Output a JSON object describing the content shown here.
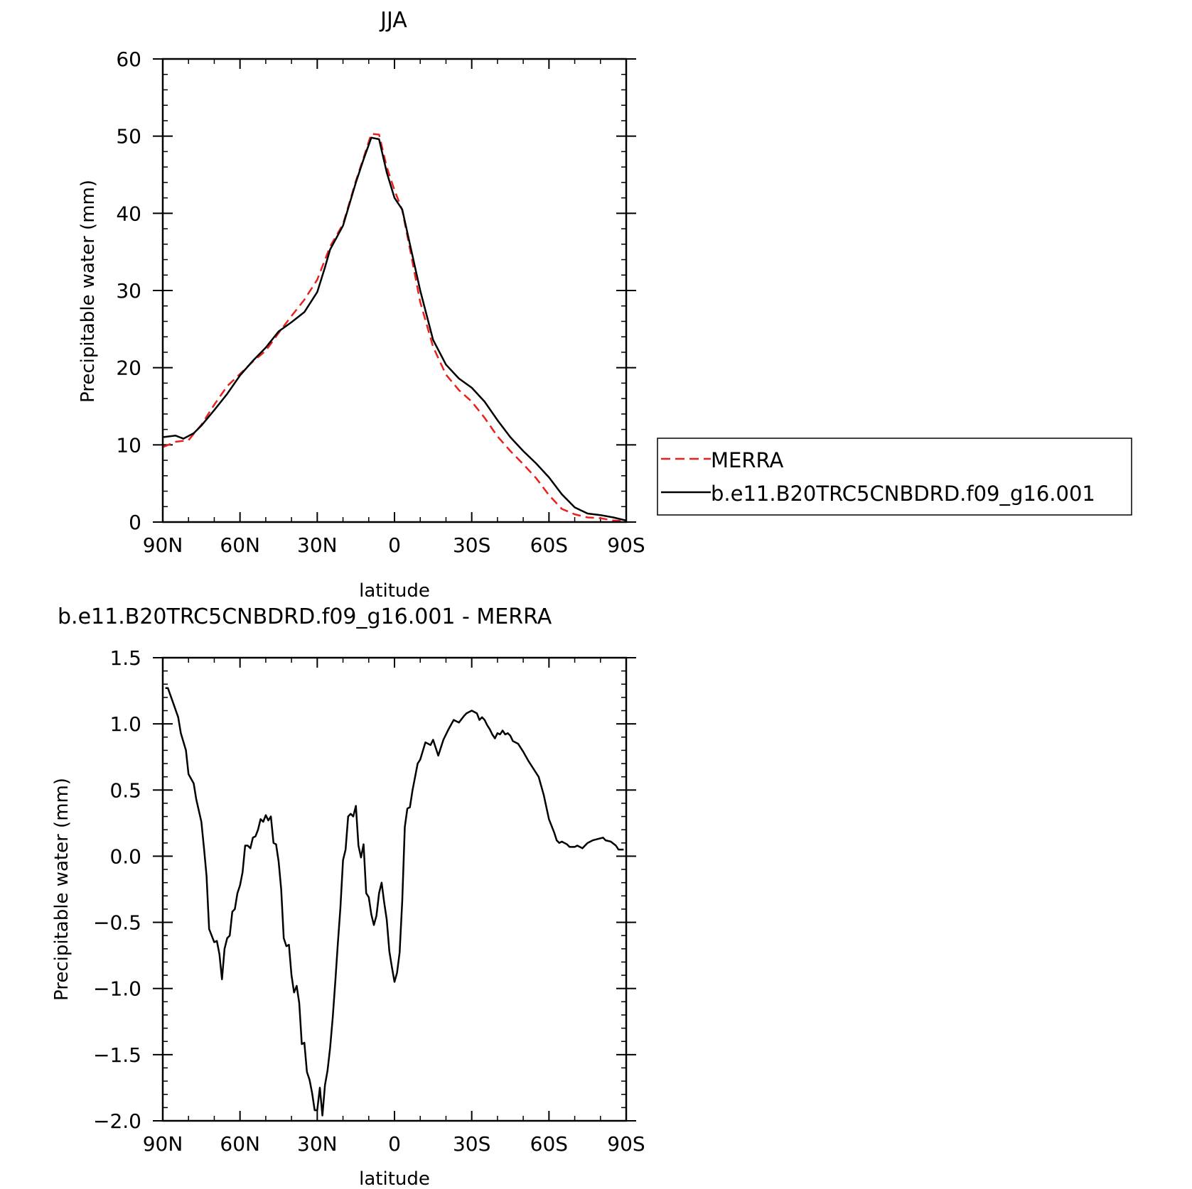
{
  "chart_data": [
    {
      "type": "line",
      "title": "JJA",
      "xlabel": "latitude",
      "ylabel": "Precipitable water (mm)",
      "xlim": [
        90,
        -90
      ],
      "ylim": [
        0,
        60
      ],
      "x_ticks": [
        90,
        60,
        30,
        0,
        -30,
        -60,
        -90
      ],
      "x_tick_labels": [
        "90N",
        "60N",
        "30N",
        "0",
        "30S",
        "60S",
        "90S"
      ],
      "y_ticks": [
        0,
        10,
        20,
        30,
        40,
        50,
        60
      ],
      "y_tick_labels": [
        "0",
        "10",
        "20",
        "30",
        "40",
        "50",
        "60"
      ],
      "legend": {
        "position": "right",
        "entries": [
          "MERRA",
          "b.e11.B20TRC5CNBDRD.f09_g16.001"
        ]
      },
      "series": [
        {
          "name": "MERRA",
          "color": "#e8211d",
          "dash": "dashed",
          "x": [
            90,
            85,
            80,
            75,
            70,
            65,
            60,
            55,
            50,
            45,
            40,
            35,
            30,
            25,
            20,
            15,
            12,
            9,
            6,
            3,
            0,
            -3,
            -6,
            -10,
            -15,
            -20,
            -25,
            -30,
            -35,
            -40,
            -45,
            -50,
            -55,
            -60,
            -65,
            -70,
            -75,
            -80,
            -85,
            -90
          ],
          "values": [
            9.7,
            10.4,
            10.6,
            12.6,
            15.2,
            17.6,
            19.2,
            20.8,
            22.2,
            24.5,
            26.7,
            28.8,
            31.4,
            35.7,
            38.6,
            44.2,
            47.2,
            50.3,
            50.2,
            46.0,
            43.0,
            40.4,
            35.4,
            28.5,
            22.7,
            19.1,
            17.1,
            15.6,
            13.5,
            11.1,
            9.2,
            7.5,
            5.7,
            3.5,
            1.7,
            1.0,
            0.6,
            0.5,
            0.2,
            0.1
          ]
        },
        {
          "name": "b.e11.B20TRC5CNBDRD.f09_g16.001",
          "color": "#000000",
          "dash": "solid",
          "x": [
            90,
            85,
            82,
            78,
            75,
            70,
            65,
            60,
            55,
            50,
            45,
            40,
            35,
            30,
            27,
            25,
            20,
            15,
            12,
            9,
            6,
            3,
            0,
            -3,
            -6,
            -10,
            -15,
            -20,
            -25,
            -30,
            -35,
            -40,
            -45,
            -50,
            -55,
            -60,
            -65,
            -70,
            -75,
            -80,
            -85,
            -90
          ],
          "values": [
            11.0,
            11.2,
            10.8,
            11.5,
            12.5,
            14.5,
            16.6,
            19.0,
            20.9,
            22.6,
            24.7,
            25.9,
            27.2,
            29.8,
            33.0,
            35.3,
            38.4,
            44.0,
            47.0,
            49.8,
            49.6,
            45.3,
            42.0,
            40.5,
            36.0,
            30.0,
            23.6,
            20.4,
            18.6,
            17.4,
            15.6,
            13.2,
            11.0,
            9.2,
            7.6,
            5.8,
            3.6,
            1.9,
            1.1,
            0.9,
            0.6,
            0.2
          ]
        }
      ]
    },
    {
      "type": "line",
      "title": "b.e11.B20TRC5CNBDRD.f09_g16.001 - MERRA",
      "xlabel": "latitude",
      "ylabel": "Precipitable water (mm)",
      "xlim": [
        90,
        -90
      ],
      "ylim": [
        -2.0,
        1.5
      ],
      "x_ticks": [
        90,
        60,
        30,
        0,
        -30,
        -60,
        -90
      ],
      "x_tick_labels": [
        "90N",
        "60N",
        "30N",
        "0",
        "30S",
        "60S",
        "90S"
      ],
      "y_ticks": [
        1.5,
        1.0,
        0.5,
        0.0,
        -0.5,
        -1.0,
        -1.5,
        -2.0
      ],
      "y_tick_labels": [
        "1.5",
        "1.0",
        "0.5",
        "0.0",
        "−0.5",
        "−1.0",
        "−1.5",
        "−2.0"
      ],
      "series": [
        {
          "color": "#000000",
          "dash": "solid",
          "x": [
            89,
            88,
            86,
            84,
            83,
            81,
            80,
            78,
            77,
            75,
            74,
            73,
            72,
            70,
            69,
            68,
            67,
            66,
            65,
            64,
            63,
            62,
            61,
            60,
            59,
            58,
            57,
            56,
            55,
            54,
            53,
            52,
            51,
            50,
            49,
            48,
            47,
            46,
            45,
            44,
            43,
            42,
            41,
            40,
            39,
            38,
            37,
            36,
            35,
            34,
            33,
            32,
            31,
            30,
            29,
            28,
            27,
            26,
            25,
            24,
            23,
            22,
            21,
            20,
            19,
            18,
            17,
            16,
            15,
            14,
            13,
            12,
            11,
            10,
            9,
            8,
            7,
            6,
            5,
            4,
            3,
            2,
            1,
            0,
            -1,
            -2,
            -3,
            -4,
            -5,
            -6,
            -7,
            -8,
            -9,
            -10,
            -12,
            -14,
            -15,
            -17,
            -19,
            -21,
            -23,
            -25,
            -27,
            -28,
            -29,
            -30,
            -31,
            -32,
            -33,
            -34,
            -35,
            -36,
            -37,
            -38,
            -39,
            -40,
            -41,
            -42,
            -43,
            -44,
            -45,
            -46,
            -48,
            -50,
            -52,
            -54,
            -56,
            -58,
            -60,
            -62,
            -63,
            -64,
            -65,
            -66,
            -67,
            -68,
            -69,
            -70,
            -71,
            -72,
            -73,
            -74,
            -75,
            -77,
            -79,
            -81,
            -82,
            -84,
            -86,
            -87,
            -88,
            -89
          ],
          "values": [
            1.27,
            1.27,
            1.16,
            1.05,
            0.93,
            0.8,
            0.62,
            0.55,
            0.43,
            0.26,
            0.06,
            -0.15,
            -0.55,
            -0.65,
            -0.64,
            -0.74,
            -0.93,
            -0.7,
            -0.62,
            -0.6,
            -0.42,
            -0.4,
            -0.28,
            -0.22,
            -0.12,
            0.08,
            0.08,
            0.06,
            0.14,
            0.15,
            0.2,
            0.28,
            0.26,
            0.31,
            0.27,
            0.3,
            0.1,
            0.09,
            -0.04,
            -0.25,
            -0.62,
            -0.68,
            -0.67,
            -0.9,
            -1.03,
            -0.98,
            -1.11,
            -1.42,
            -1.41,
            -1.63,
            -1.69,
            -1.79,
            -1.92,
            -1.92,
            -1.75,
            -1.96,
            -1.73,
            -1.62,
            -1.45,
            -1.22,
            -0.95,
            -0.66,
            -0.39,
            -0.03,
            0.05,
            0.3,
            0.32,
            0.3,
            0.38,
            0.08,
            -0.01,
            0.09,
            -0.28,
            -0.31,
            -0.44,
            -0.52,
            -0.45,
            -0.28,
            -0.2,
            -0.35,
            -0.48,
            -0.72,
            -0.84,
            -0.95,
            -0.88,
            -0.73,
            -0.34,
            0.22,
            0.36,
            0.37,
            0.5,
            0.6,
            0.7,
            0.73,
            0.86,
            0.84,
            0.88,
            0.76,
            0.88,
            0.96,
            1.03,
            1.01,
            1.06,
            1.08,
            1.09,
            1.1,
            1.09,
            1.08,
            1.03,
            1.05,
            1.03,
            0.99,
            0.96,
            0.92,
            0.89,
            0.93,
            0.92,
            0.95,
            0.92,
            0.93,
            0.91,
            0.87,
            0.85,
            0.79,
            0.72,
            0.66,
            0.6,
            0.46,
            0.28,
            0.18,
            0.12,
            0.1,
            0.11,
            0.1,
            0.09,
            0.07,
            0.07,
            0.07,
            0.08,
            0.07,
            0.06,
            0.08,
            0.1,
            0.12,
            0.13,
            0.14,
            0.12,
            0.11,
            0.08,
            0.05,
            0.05,
            0.05
          ]
        }
      ]
    }
  ]
}
